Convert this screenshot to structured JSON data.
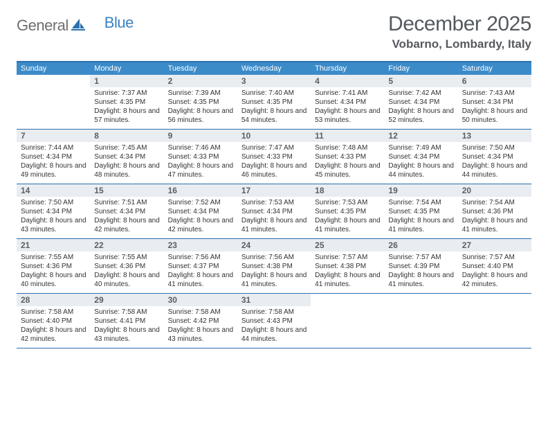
{
  "logo": {
    "part1": "General",
    "part2": "Blue"
  },
  "title": "December 2025",
  "location": "Vobarno, Lombardy, Italy",
  "colors": {
    "header_bar": "#3b8bc9",
    "header_border": "#2a6fae",
    "daynum_bg": "#e9edf1",
    "text_dark": "#323232",
    "text_muted": "#555a5f",
    "logo_gray": "#6d6e71",
    "logo_blue": "#3b82c4"
  },
  "weekdays": [
    "Sunday",
    "Monday",
    "Tuesday",
    "Wednesday",
    "Thursday",
    "Friday",
    "Saturday"
  ],
  "weeks": [
    [
      {
        "n": "",
        "sunrise": "",
        "sunset": "",
        "daylight": ""
      },
      {
        "n": "1",
        "sunrise": "Sunrise: 7:37 AM",
        "sunset": "Sunset: 4:35 PM",
        "daylight": "Daylight: 8 hours and 57 minutes."
      },
      {
        "n": "2",
        "sunrise": "Sunrise: 7:39 AM",
        "sunset": "Sunset: 4:35 PM",
        "daylight": "Daylight: 8 hours and 56 minutes."
      },
      {
        "n": "3",
        "sunrise": "Sunrise: 7:40 AM",
        "sunset": "Sunset: 4:35 PM",
        "daylight": "Daylight: 8 hours and 54 minutes."
      },
      {
        "n": "4",
        "sunrise": "Sunrise: 7:41 AM",
        "sunset": "Sunset: 4:34 PM",
        "daylight": "Daylight: 8 hours and 53 minutes."
      },
      {
        "n": "5",
        "sunrise": "Sunrise: 7:42 AM",
        "sunset": "Sunset: 4:34 PM",
        "daylight": "Daylight: 8 hours and 52 minutes."
      },
      {
        "n": "6",
        "sunrise": "Sunrise: 7:43 AM",
        "sunset": "Sunset: 4:34 PM",
        "daylight": "Daylight: 8 hours and 50 minutes."
      }
    ],
    [
      {
        "n": "7",
        "sunrise": "Sunrise: 7:44 AM",
        "sunset": "Sunset: 4:34 PM",
        "daylight": "Daylight: 8 hours and 49 minutes."
      },
      {
        "n": "8",
        "sunrise": "Sunrise: 7:45 AM",
        "sunset": "Sunset: 4:34 PM",
        "daylight": "Daylight: 8 hours and 48 minutes."
      },
      {
        "n": "9",
        "sunrise": "Sunrise: 7:46 AM",
        "sunset": "Sunset: 4:33 PM",
        "daylight": "Daylight: 8 hours and 47 minutes."
      },
      {
        "n": "10",
        "sunrise": "Sunrise: 7:47 AM",
        "sunset": "Sunset: 4:33 PM",
        "daylight": "Daylight: 8 hours and 46 minutes."
      },
      {
        "n": "11",
        "sunrise": "Sunrise: 7:48 AM",
        "sunset": "Sunset: 4:33 PM",
        "daylight": "Daylight: 8 hours and 45 minutes."
      },
      {
        "n": "12",
        "sunrise": "Sunrise: 7:49 AM",
        "sunset": "Sunset: 4:34 PM",
        "daylight": "Daylight: 8 hours and 44 minutes."
      },
      {
        "n": "13",
        "sunrise": "Sunrise: 7:50 AM",
        "sunset": "Sunset: 4:34 PM",
        "daylight": "Daylight: 8 hours and 44 minutes."
      }
    ],
    [
      {
        "n": "14",
        "sunrise": "Sunrise: 7:50 AM",
        "sunset": "Sunset: 4:34 PM",
        "daylight": "Daylight: 8 hours and 43 minutes."
      },
      {
        "n": "15",
        "sunrise": "Sunrise: 7:51 AM",
        "sunset": "Sunset: 4:34 PM",
        "daylight": "Daylight: 8 hours and 42 minutes."
      },
      {
        "n": "16",
        "sunrise": "Sunrise: 7:52 AM",
        "sunset": "Sunset: 4:34 PM",
        "daylight": "Daylight: 8 hours and 42 minutes."
      },
      {
        "n": "17",
        "sunrise": "Sunrise: 7:53 AM",
        "sunset": "Sunset: 4:34 PM",
        "daylight": "Daylight: 8 hours and 41 minutes."
      },
      {
        "n": "18",
        "sunrise": "Sunrise: 7:53 AM",
        "sunset": "Sunset: 4:35 PM",
        "daylight": "Daylight: 8 hours and 41 minutes."
      },
      {
        "n": "19",
        "sunrise": "Sunrise: 7:54 AM",
        "sunset": "Sunset: 4:35 PM",
        "daylight": "Daylight: 8 hours and 41 minutes."
      },
      {
        "n": "20",
        "sunrise": "Sunrise: 7:54 AM",
        "sunset": "Sunset: 4:36 PM",
        "daylight": "Daylight: 8 hours and 41 minutes."
      }
    ],
    [
      {
        "n": "21",
        "sunrise": "Sunrise: 7:55 AM",
        "sunset": "Sunset: 4:36 PM",
        "daylight": "Daylight: 8 hours and 40 minutes."
      },
      {
        "n": "22",
        "sunrise": "Sunrise: 7:55 AM",
        "sunset": "Sunset: 4:36 PM",
        "daylight": "Daylight: 8 hours and 40 minutes."
      },
      {
        "n": "23",
        "sunrise": "Sunrise: 7:56 AM",
        "sunset": "Sunset: 4:37 PM",
        "daylight": "Daylight: 8 hours and 41 minutes."
      },
      {
        "n": "24",
        "sunrise": "Sunrise: 7:56 AM",
        "sunset": "Sunset: 4:38 PM",
        "daylight": "Daylight: 8 hours and 41 minutes."
      },
      {
        "n": "25",
        "sunrise": "Sunrise: 7:57 AM",
        "sunset": "Sunset: 4:38 PM",
        "daylight": "Daylight: 8 hours and 41 minutes."
      },
      {
        "n": "26",
        "sunrise": "Sunrise: 7:57 AM",
        "sunset": "Sunset: 4:39 PM",
        "daylight": "Daylight: 8 hours and 41 minutes."
      },
      {
        "n": "27",
        "sunrise": "Sunrise: 7:57 AM",
        "sunset": "Sunset: 4:40 PM",
        "daylight": "Daylight: 8 hours and 42 minutes."
      }
    ],
    [
      {
        "n": "28",
        "sunrise": "Sunrise: 7:58 AM",
        "sunset": "Sunset: 4:40 PM",
        "daylight": "Daylight: 8 hours and 42 minutes."
      },
      {
        "n": "29",
        "sunrise": "Sunrise: 7:58 AM",
        "sunset": "Sunset: 4:41 PM",
        "daylight": "Daylight: 8 hours and 43 minutes."
      },
      {
        "n": "30",
        "sunrise": "Sunrise: 7:58 AM",
        "sunset": "Sunset: 4:42 PM",
        "daylight": "Daylight: 8 hours and 43 minutes."
      },
      {
        "n": "31",
        "sunrise": "Sunrise: 7:58 AM",
        "sunset": "Sunset: 4:43 PM",
        "daylight": "Daylight: 8 hours and 44 minutes."
      },
      {
        "n": "",
        "sunrise": "",
        "sunset": "",
        "daylight": ""
      },
      {
        "n": "",
        "sunrise": "",
        "sunset": "",
        "daylight": ""
      },
      {
        "n": "",
        "sunrise": "",
        "sunset": "",
        "daylight": ""
      }
    ]
  ]
}
